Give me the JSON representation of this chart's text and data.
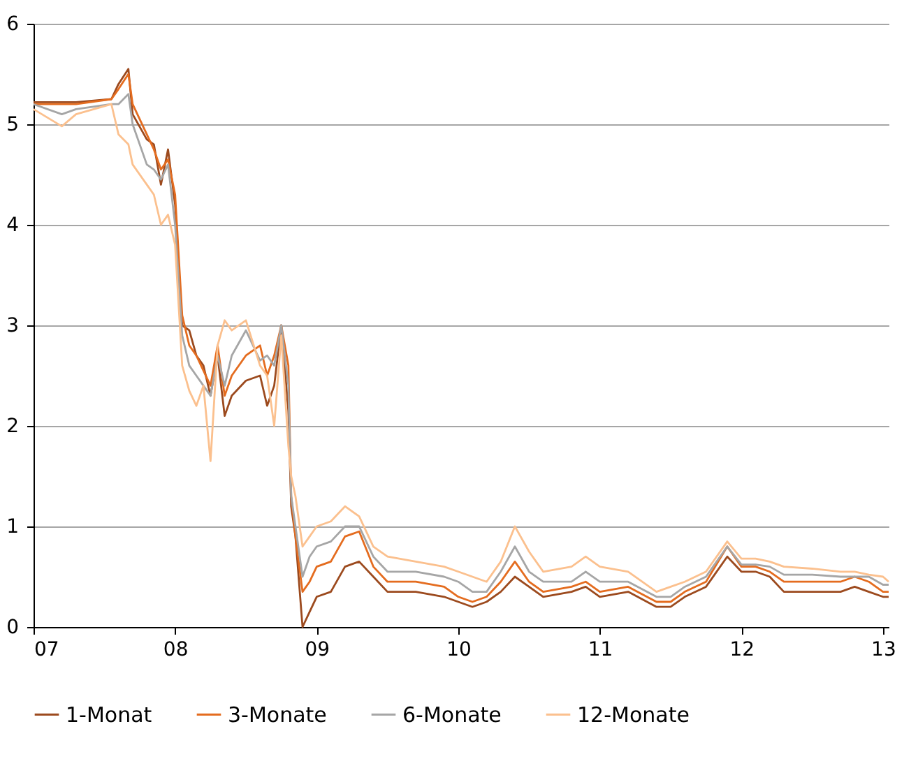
{
  "chart_data": {
    "type": "line",
    "xlim": [
      2007,
      2013.04
    ],
    "ylim": [
      0,
      6
    ],
    "xticks": [
      {
        "value": 2007,
        "label": "07"
      },
      {
        "value": 2008,
        "label": "08"
      },
      {
        "value": 2009,
        "label": "09"
      },
      {
        "value": 2010,
        "label": "10"
      },
      {
        "value": 2011,
        "label": "11"
      },
      {
        "value": 2012,
        "label": "12"
      },
      {
        "value": 2013,
        "label": "13"
      }
    ],
    "yticks": [
      0,
      1,
      2,
      3,
      4,
      5,
      6
    ],
    "grid": "y",
    "legend": "bottom",
    "line_style": "solid",
    "series": [
      {
        "name": "1-Monat",
        "color": "#9c4a1e",
        "x": [
          2007,
          2007.3,
          2007.55,
          2007.6,
          2007.67,
          2007.7,
          2007.8,
          2007.85,
          2007.9,
          2007.95,
          2008,
          2008.05,
          2008.1,
          2008.15,
          2008.2,
          2008.25,
          2008.3,
          2008.35,
          2008.4,
          2008.5,
          2008.6,
          2008.65,
          2008.7,
          2008.75,
          2008.8,
          2008.82,
          2008.85,
          2008.9,
          2008.95,
          2009,
          2009.1,
          2009.2,
          2009.3,
          2009.4,
          2009.5,
          2009.7,
          2009.9,
          2010,
          2010.1,
          2010.2,
          2010.3,
          2010.4,
          2010.5,
          2010.6,
          2010.8,
          2010.9,
          2011,
          2011.2,
          2011.4,
          2011.5,
          2011.6,
          2011.75,
          2011.9,
          2012,
          2012.1,
          2012.2,
          2012.3,
          2012.5,
          2012.7,
          2012.8,
          2012.9,
          2013,
          2013.04
        ],
        "values": [
          5.22,
          5.22,
          5.25,
          5.4,
          5.55,
          5.1,
          4.85,
          4.8,
          4.4,
          4.75,
          4.2,
          3.0,
          2.95,
          2.7,
          2.6,
          2.3,
          2.7,
          2.1,
          2.3,
          2.45,
          2.5,
          2.2,
          2.4,
          3.0,
          2.15,
          1.2,
          0.9,
          0.0,
          0.15,
          0.3,
          0.35,
          0.6,
          0.65,
          0.5,
          0.35,
          0.35,
          0.3,
          0.25,
          0.2,
          0.25,
          0.35,
          0.5,
          0.4,
          0.3,
          0.35,
          0.4,
          0.3,
          0.35,
          0.2,
          0.2,
          0.3,
          0.4,
          0.7,
          0.55,
          0.55,
          0.5,
          0.35,
          0.35,
          0.35,
          0.4,
          0.35,
          0.3,
          0.3
        ]
      },
      {
        "name": "3-Monate",
        "color": "#e46c1f",
        "x": [
          2007,
          2007.3,
          2007.55,
          2007.6,
          2007.67,
          2007.7,
          2007.8,
          2007.85,
          2007.9,
          2007.95,
          2008,
          2008.05,
          2008.1,
          2008.15,
          2008.2,
          2008.25,
          2008.3,
          2008.35,
          2008.4,
          2008.5,
          2008.6,
          2008.65,
          2008.7,
          2008.75,
          2008.8,
          2008.82,
          2008.85,
          2008.9,
          2008.95,
          2009,
          2009.1,
          2009.2,
          2009.3,
          2009.4,
          2009.5,
          2009.7,
          2009.9,
          2010,
          2010.1,
          2010.2,
          2010.3,
          2010.4,
          2010.5,
          2010.6,
          2010.8,
          2010.9,
          2011,
          2011.2,
          2011.4,
          2011.5,
          2011.6,
          2011.75,
          2011.9,
          2012,
          2012.1,
          2012.2,
          2012.3,
          2012.5,
          2012.7,
          2012.8,
          2012.9,
          2013,
          2013.04
        ],
        "values": [
          5.2,
          5.2,
          5.25,
          5.35,
          5.5,
          5.2,
          4.9,
          4.75,
          4.55,
          4.65,
          4.3,
          3.1,
          2.8,
          2.7,
          2.55,
          2.4,
          2.8,
          2.3,
          2.5,
          2.7,
          2.8,
          2.5,
          2.7,
          3.0,
          2.6,
          1.3,
          0.9,
          0.35,
          0.45,
          0.6,
          0.65,
          0.9,
          0.95,
          0.6,
          0.45,
          0.45,
          0.4,
          0.3,
          0.25,
          0.3,
          0.45,
          0.65,
          0.45,
          0.35,
          0.4,
          0.45,
          0.35,
          0.4,
          0.25,
          0.25,
          0.35,
          0.45,
          0.8,
          0.6,
          0.6,
          0.55,
          0.45,
          0.45,
          0.45,
          0.5,
          0.45,
          0.35,
          0.35
        ]
      },
      {
        "name": "6-Monate",
        "color": "#a6a6a6",
        "x": [
          2007,
          2007.2,
          2007.3,
          2007.55,
          2007.6,
          2007.67,
          2007.7,
          2007.8,
          2007.85,
          2007.9,
          2007.95,
          2008,
          2008.05,
          2008.1,
          2008.15,
          2008.2,
          2008.25,
          2008.3,
          2008.35,
          2008.4,
          2008.5,
          2008.6,
          2008.65,
          2008.7,
          2008.75,
          2008.8,
          2008.82,
          2008.85,
          2008.9,
          2008.95,
          2009,
          2009.1,
          2009.2,
          2009.3,
          2009.4,
          2009.5,
          2009.7,
          2009.9,
          2010,
          2010.1,
          2010.2,
          2010.3,
          2010.4,
          2010.5,
          2010.6,
          2010.8,
          2010.9,
          2011,
          2011.2,
          2011.4,
          2011.5,
          2011.6,
          2011.75,
          2011.9,
          2012,
          2012.1,
          2012.2,
          2012.3,
          2012.5,
          2012.7,
          2012.8,
          2012.9,
          2013,
          2013.04
        ],
        "values": [
          5.2,
          5.1,
          5.15,
          5.2,
          5.2,
          5.3,
          5.0,
          4.6,
          4.55,
          4.45,
          4.6,
          4.0,
          2.9,
          2.6,
          2.5,
          2.4,
          2.3,
          2.7,
          2.4,
          2.7,
          2.95,
          2.65,
          2.7,
          2.6,
          3.0,
          2.4,
          1.3,
          1.0,
          0.5,
          0.7,
          0.8,
          0.85,
          1.0,
          1.0,
          0.7,
          0.55,
          0.55,
          0.5,
          0.45,
          0.35,
          0.35,
          0.55,
          0.8,
          0.55,
          0.45,
          0.45,
          0.55,
          0.45,
          0.45,
          0.3,
          0.3,
          0.4,
          0.5,
          0.8,
          0.62,
          0.62,
          0.6,
          0.52,
          0.52,
          0.5,
          0.5,
          0.5,
          0.42,
          0.42
        ]
      },
      {
        "name": "12-Monate",
        "color": "#fbc08e",
        "x": [
          2007,
          2007.2,
          2007.3,
          2007.55,
          2007.6,
          2007.67,
          2007.7,
          2007.8,
          2007.85,
          2007.9,
          2007.95,
          2008,
          2008.05,
          2008.1,
          2008.15,
          2008.2,
          2008.25,
          2008.3,
          2008.35,
          2008.4,
          2008.5,
          2008.6,
          2008.65,
          2008.7,
          2008.75,
          2008.8,
          2008.82,
          2008.85,
          2008.9,
          2008.95,
          2009,
          2009.1,
          2009.2,
          2009.3,
          2009.4,
          2009.5,
          2009.7,
          2009.9,
          2010,
          2010.1,
          2010.2,
          2010.3,
          2010.4,
          2010.5,
          2010.6,
          2010.8,
          2010.9,
          2011,
          2011.2,
          2011.4,
          2011.5,
          2011.6,
          2011.75,
          2011.9,
          2012,
          2012.1,
          2012.2,
          2012.3,
          2012.5,
          2012.7,
          2012.8,
          2012.9,
          2013,
          2013.04
        ],
        "values": [
          5.15,
          4.98,
          5.1,
          5.2,
          4.9,
          4.8,
          4.6,
          4.4,
          4.3,
          4.0,
          4.1,
          3.8,
          2.6,
          2.35,
          2.2,
          2.4,
          1.65,
          2.8,
          3.05,
          2.95,
          3.05,
          2.6,
          2.5,
          2.0,
          2.9,
          1.8,
          1.5,
          1.3,
          0.8,
          0.9,
          1.0,
          1.05,
          1.2,
          1.1,
          0.8,
          0.7,
          0.65,
          0.6,
          0.55,
          0.5,
          0.45,
          0.65,
          1.0,
          0.75,
          0.55,
          0.6,
          0.7,
          0.6,
          0.55,
          0.35,
          0.4,
          0.45,
          0.55,
          0.85,
          0.68,
          0.68,
          0.65,
          0.6,
          0.58,
          0.55,
          0.55,
          0.52,
          0.5,
          0.45
        ]
      }
    ]
  }
}
